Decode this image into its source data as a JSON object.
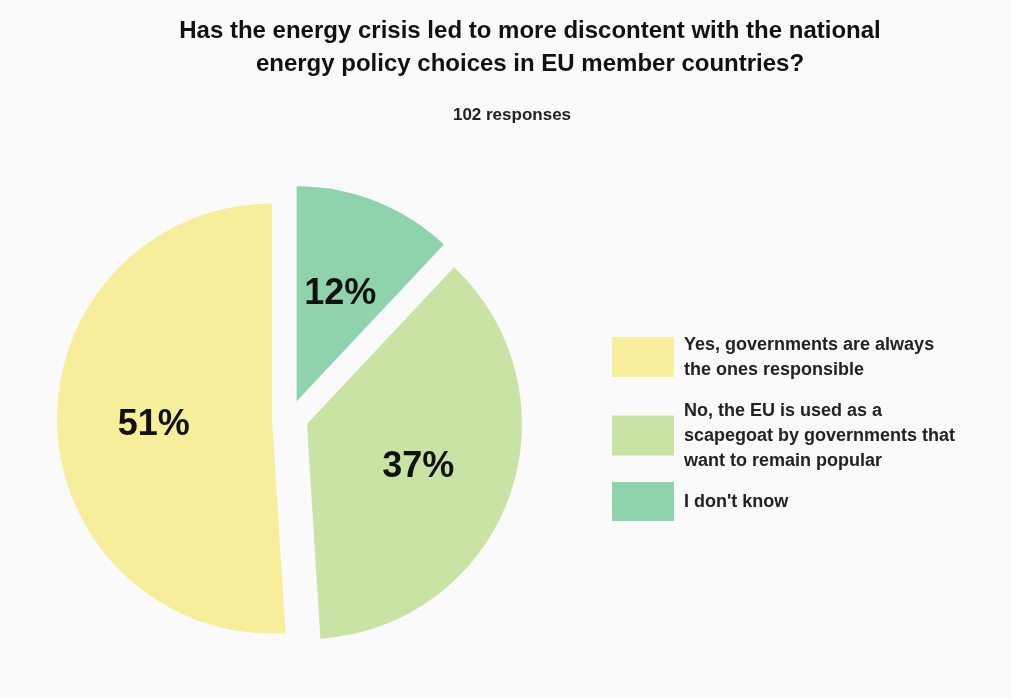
{
  "chart_data": {
    "type": "pie",
    "title": "Has the energy crisis led to more discontent with the national energy policy choices in EU member countries?",
    "subtitle": "102 responses",
    "categories": [
      "Yes, governments are always the ones responsible",
      "No, the EU is used as a scapegoat by governments that want to remain popular",
      "I don't know"
    ],
    "values": [
      51,
      37,
      12
    ],
    "colors": [
      "#f6ee9b",
      "#c9e3a5",
      "#8fd3ad"
    ],
    "value_labels": [
      "51%",
      "37%",
      "12%"
    ],
    "legend": "right"
  }
}
